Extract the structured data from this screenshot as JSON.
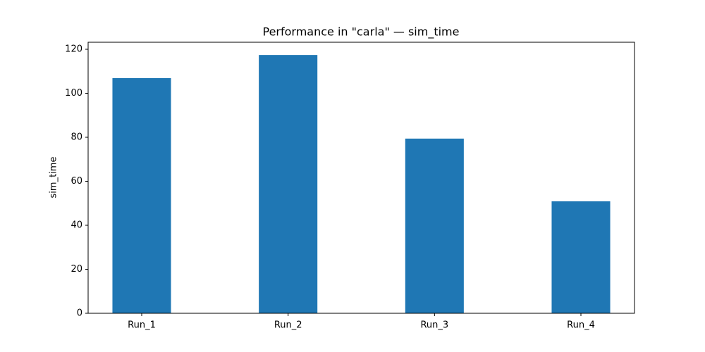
{
  "chart_data": {
    "type": "bar",
    "title": "Performance in \"carla\" — sim_time",
    "y_label": "sim_time",
    "categories": [
      "Run_1",
      "Run_2",
      "Run_3",
      "Run_4"
    ],
    "values": [
      106.9,
      117.4,
      79.4,
      50.9
    ],
    "color": "#1f77b4",
    "ylim": [
      0,
      123.2
    ],
    "yticks": [
      0,
      20,
      40,
      60,
      80,
      100,
      120
    ]
  }
}
